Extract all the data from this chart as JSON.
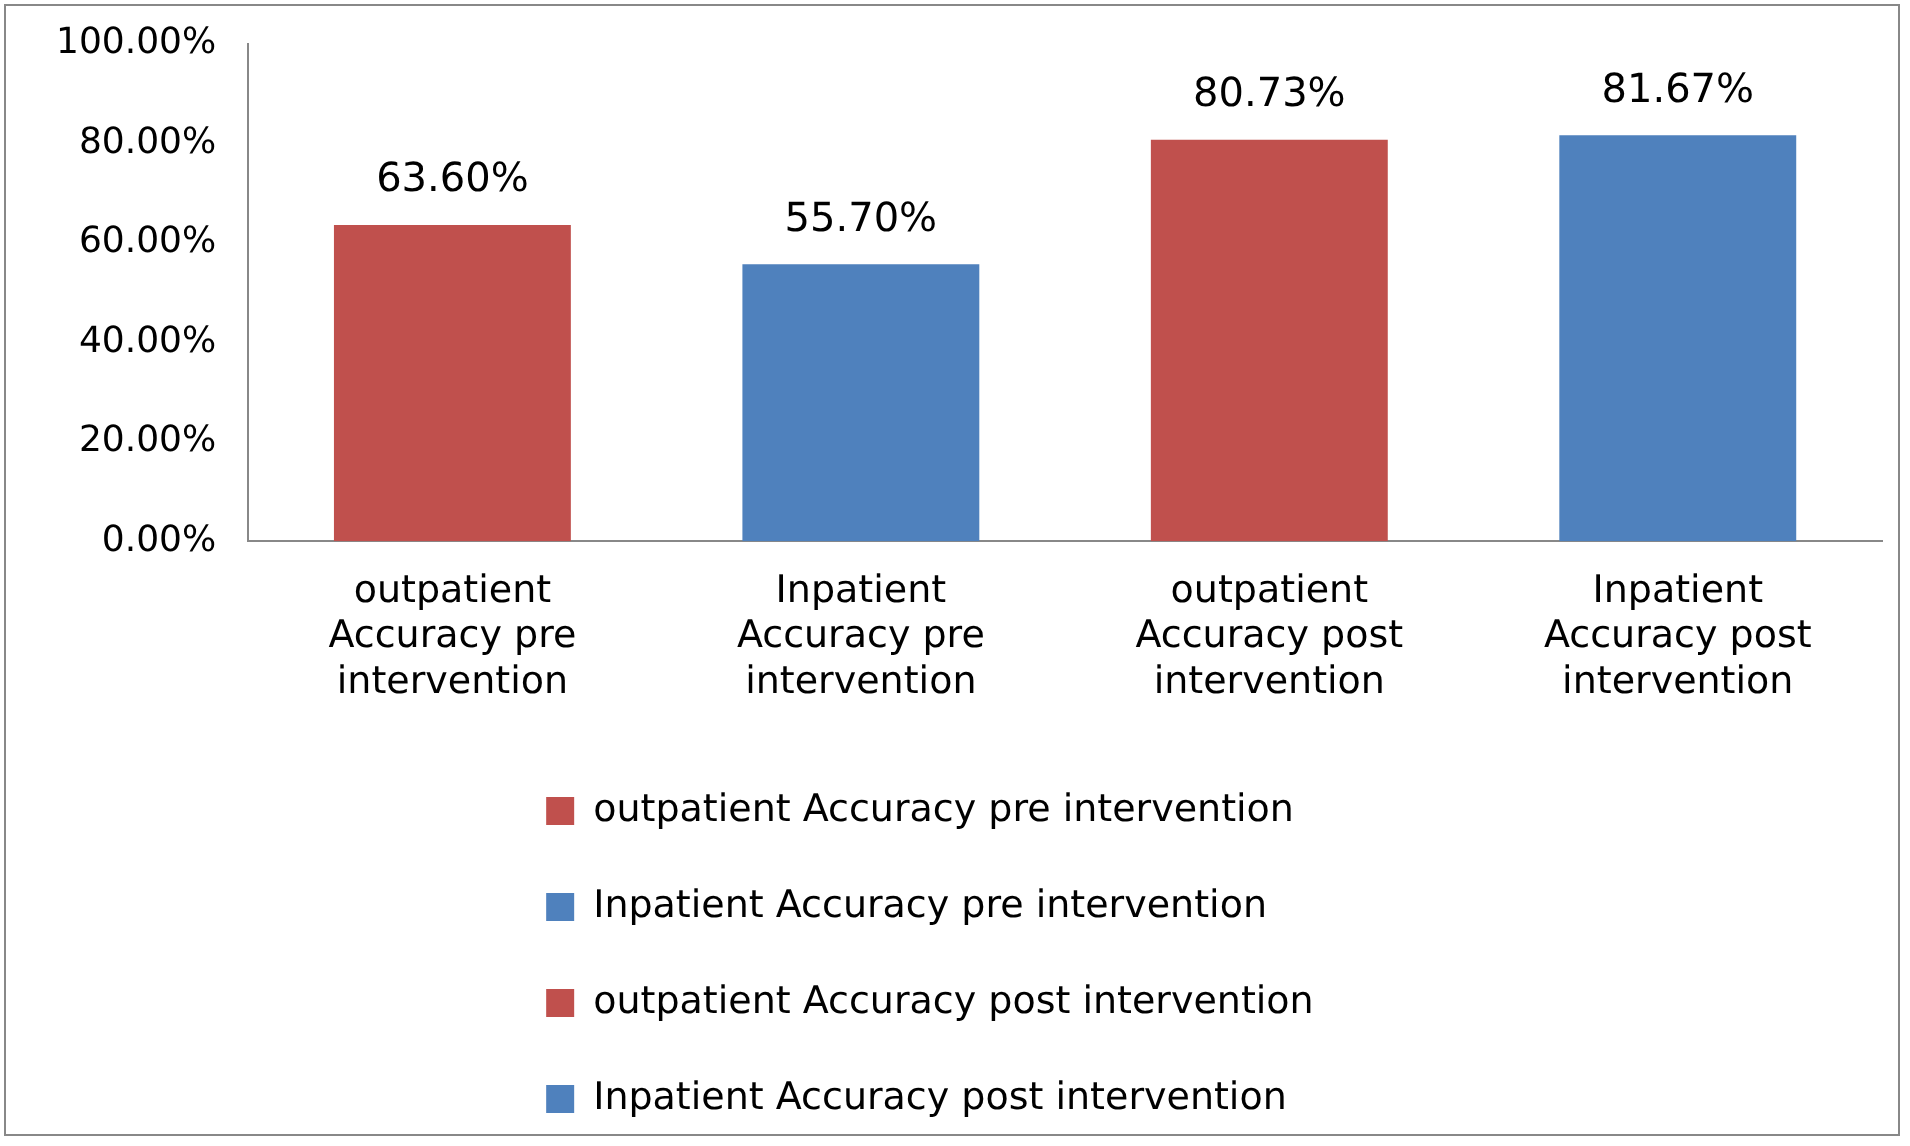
{
  "chart_data": {
    "type": "bar",
    "categories": [
      "outpatient Accuracy pre intervention",
      "Inpatient Accuracy pre intervention",
      "outpatient Accuracy post intervention",
      "Inpatient Accuracy post intervention"
    ],
    "series": [
      {
        "name": "outpatient Accuracy pre intervention",
        "color": "#c0504d",
        "values": [
          63.6,
          null,
          null,
          null
        ],
        "value_labels": [
          "63.60%",
          null,
          null,
          null
        ]
      },
      {
        "name": "Inpatient Accuracy pre intervention",
        "color": "#4f81bd",
        "values": [
          null,
          55.7,
          null,
          null
        ],
        "value_labels": [
          null,
          "55.70%",
          null,
          null
        ]
      },
      {
        "name": "outpatient Accuracy post intervention",
        "color": "#c0504d",
        "values": [
          null,
          null,
          80.73,
          null
        ],
        "value_labels": [
          null,
          null,
          "80.73%",
          null
        ]
      },
      {
        "name": "Inpatient Accuracy post intervention",
        "color": "#4f81bd",
        "values": [
          null,
          null,
          null,
          81.67
        ],
        "value_labels": [
          null,
          null,
          null,
          "81.67%"
        ]
      }
    ],
    "ylim": [
      0,
      100
    ],
    "yticks": [
      {
        "value": 0,
        "label": "0.00%"
      },
      {
        "value": 20,
        "label": "20.00%"
      },
      {
        "value": 40,
        "label": "40.00%"
      },
      {
        "value": 60,
        "label": "60.00%"
      },
      {
        "value": 80,
        "label": "80.00%"
      },
      {
        "value": 100,
        "label": "100.00%"
      }
    ],
    "grid": false,
    "legend": "bottom"
  }
}
